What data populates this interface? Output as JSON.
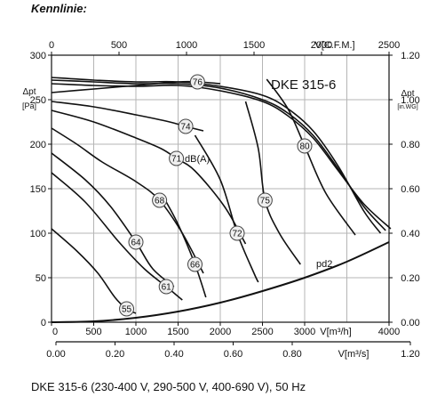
{
  "heading": "Kennlinie:",
  "caption": "DKE 315-6 (230-400 V, 290-500 V, 400-690 V), 50 Hz",
  "chart_data": {
    "type": "line",
    "title": "DKE 315-6",
    "xlabel": "V[m³/h]",
    "ylabel": "Δpt [Pa]",
    "xlim": [
      0,
      4000
    ],
    "ylim": [
      0,
      300
    ],
    "xticks": [
      "0",
      "500",
      "1000",
      "1500",
      "2000",
      "2500",
      "3000",
      "4000"
    ],
    "yticks": [
      "0",
      "50",
      "100",
      "150",
      "200",
      "250",
      "300"
    ],
    "grid": true,
    "top_axis": {
      "label": "V[C.F.M.]",
      "ticks": [
        "0",
        "500",
        "1000",
        "1500",
        "2000",
        "2500"
      ],
      "max": 2500
    },
    "right_axis": {
      "label": "Δpt",
      "unit": "[in.WG]",
      "ticks": [
        "0.00",
        "0.20",
        "0.40",
        "0.60",
        "0.80",
        "1.00",
        "1.20"
      ],
      "max": 1.2
    },
    "bottom2_axis": {
      "label": "V[m³/s]",
      "ticks": [
        "0.00",
        "0.20",
        "0.40",
        "0.60",
        "0.80",
        "1.20"
      ],
      "max": 1.2
    },
    "fan_curves": [
      {
        "x": [
          0,
          500,
          1000,
          1500,
          2000,
          2500,
          2800,
          3100,
          3400,
          3700,
          3900
        ],
        "y": [
          275,
          272,
          270,
          270,
          265,
          255,
          240,
          215,
          175,
          125,
          100
        ]
      },
      {
        "x": [
          0,
          500,
          1000,
          1500,
          2000,
          2500,
          2800,
          3100,
          3400,
          3700,
          3960
        ],
        "y": [
          272,
          270,
          268,
          268,
          263,
          250,
          235,
          210,
          172,
          130,
          103
        ]
      },
      {
        "x": [
          0,
          500,
          1000,
          1500,
          2000,
          2500,
          2800,
          3100,
          3400,
          3700,
          4020
        ],
        "y": [
          268,
          266,
          265,
          266,
          260,
          248,
          232,
          207,
          170,
          133,
          105
        ]
      }
    ],
    "isolines": [
      {
        "label": "76",
        "label_x": 1730,
        "label_y": 270,
        "x": [
          0,
          500,
          1000,
          1500,
          1730,
          2000
        ],
        "y": [
          258,
          262,
          266,
          270,
          270,
          268
        ]
      },
      {
        "label": "74",
        "label_x": 1590,
        "label_y": 220,
        "x": [
          0,
          500,
          1000,
          1400,
          1590,
          1800
        ],
        "y": [
          248,
          242,
          233,
          225,
          220,
          215
        ]
      },
      {
        "label": "71",
        "label_x": 1480,
        "label_y": 184,
        "x": [
          0,
          500,
          1000,
          1300,
          1480,
          1700,
          2050,
          2300
        ],
        "y": [
          238,
          225,
          207,
          195,
          184,
          170,
          130,
          88
        ]
      },
      {
        "label": "68",
        "label_x": 1280,
        "label_y": 137,
        "x": [
          0,
          300,
          600,
          1000,
          1280,
          1550,
          1800
        ],
        "y": [
          218,
          200,
          180,
          158,
          137,
          100,
          55
        ]
      },
      {
        "label": "64",
        "label_x": 1000,
        "label_y": 90,
        "x": [
          0,
          400,
          700,
          1000,
          1200,
          1450
        ],
        "y": [
          190,
          160,
          130,
          90,
          60,
          40
        ]
      },
      {
        "label": "61",
        "label_x": 1360,
        "label_y": 40,
        "x": [
          0,
          400,
          800,
          1100,
          1360,
          1550
        ],
        "y": [
          168,
          135,
          90,
          60,
          40,
          25
        ]
      },
      {
        "label": "55",
        "label_x": 890,
        "label_y": 15,
        "x": [
          0,
          300,
          550,
          750,
          890,
          1000
        ],
        "y": [
          105,
          80,
          55,
          28,
          15,
          10
        ]
      },
      {
        "label": "66",
        "label_x": 1700,
        "label_y": 65,
        "x": [
          1300,
          1500,
          1700,
          1830
        ],
        "y": [
          145,
          110,
          65,
          28
        ]
      },
      {
        "label": "72",
        "label_x": 2200,
        "label_y": 100,
        "x": [
          1700,
          2000,
          2200,
          2400,
          2450
        ],
        "y": [
          210,
          160,
          100,
          55,
          45
        ]
      },
      {
        "label": "75",
        "label_x": 2530,
        "label_y": 137,
        "x": [
          2300,
          2450,
          2530,
          2700,
          2950
        ],
        "y": [
          248,
          195,
          137,
          100,
          65
        ]
      },
      {
        "label": "80",
        "label_x": 3000,
        "label_y": 198,
        "x": [
          2550,
          2800,
          3000,
          3250,
          3600
        ],
        "y": [
          273,
          240,
          198,
          145,
          98
        ]
      }
    ],
    "system_curve": {
      "label": "pd2",
      "x": [
        0,
        500,
        1000,
        1500,
        2000,
        2500,
        3000,
        3500,
        4000
      ],
      "y": [
        0,
        1,
        5,
        12,
        22,
        35,
        50,
        68,
        90
      ]
    }
  }
}
